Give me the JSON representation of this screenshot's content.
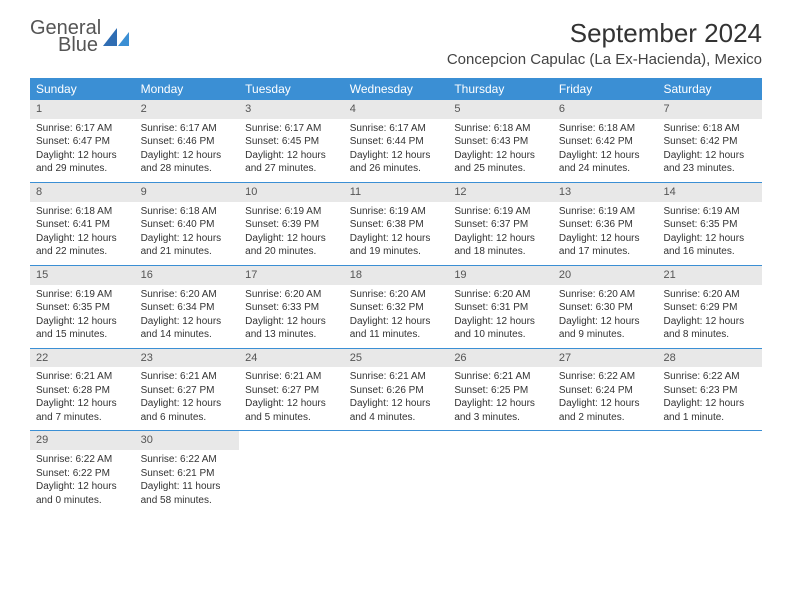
{
  "logo": {
    "word1": "General",
    "word2": "Blue"
  },
  "title": "September 2024",
  "location": "Concepcion Capulac (La Ex-Hacienda), Mexico",
  "colors": {
    "header_bg": "#3b8fd4",
    "header_text": "#ffffff",
    "daynum_bg": "#e8e8e8",
    "border": "#3b8fd4",
    "text": "#333333",
    "logo_gray": "#555555",
    "logo_blue": "#3b7fc4"
  },
  "weekdays": [
    "Sunday",
    "Monday",
    "Tuesday",
    "Wednesday",
    "Thursday",
    "Friday",
    "Saturday"
  ],
  "weeks": [
    [
      {
        "n": "1",
        "sr": "Sunrise: 6:17 AM",
        "ss": "Sunset: 6:47 PM",
        "dl1": "Daylight: 12 hours",
        "dl2": "and 29 minutes."
      },
      {
        "n": "2",
        "sr": "Sunrise: 6:17 AM",
        "ss": "Sunset: 6:46 PM",
        "dl1": "Daylight: 12 hours",
        "dl2": "and 28 minutes."
      },
      {
        "n": "3",
        "sr": "Sunrise: 6:17 AM",
        "ss": "Sunset: 6:45 PM",
        "dl1": "Daylight: 12 hours",
        "dl2": "and 27 minutes."
      },
      {
        "n": "4",
        "sr": "Sunrise: 6:17 AM",
        "ss": "Sunset: 6:44 PM",
        "dl1": "Daylight: 12 hours",
        "dl2": "and 26 minutes."
      },
      {
        "n": "5",
        "sr": "Sunrise: 6:18 AM",
        "ss": "Sunset: 6:43 PM",
        "dl1": "Daylight: 12 hours",
        "dl2": "and 25 minutes."
      },
      {
        "n": "6",
        "sr": "Sunrise: 6:18 AM",
        "ss": "Sunset: 6:42 PM",
        "dl1": "Daylight: 12 hours",
        "dl2": "and 24 minutes."
      },
      {
        "n": "7",
        "sr": "Sunrise: 6:18 AM",
        "ss": "Sunset: 6:42 PM",
        "dl1": "Daylight: 12 hours",
        "dl2": "and 23 minutes."
      }
    ],
    [
      {
        "n": "8",
        "sr": "Sunrise: 6:18 AM",
        "ss": "Sunset: 6:41 PM",
        "dl1": "Daylight: 12 hours",
        "dl2": "and 22 minutes."
      },
      {
        "n": "9",
        "sr": "Sunrise: 6:18 AM",
        "ss": "Sunset: 6:40 PM",
        "dl1": "Daylight: 12 hours",
        "dl2": "and 21 minutes."
      },
      {
        "n": "10",
        "sr": "Sunrise: 6:19 AM",
        "ss": "Sunset: 6:39 PM",
        "dl1": "Daylight: 12 hours",
        "dl2": "and 20 minutes."
      },
      {
        "n": "11",
        "sr": "Sunrise: 6:19 AM",
        "ss": "Sunset: 6:38 PM",
        "dl1": "Daylight: 12 hours",
        "dl2": "and 19 minutes."
      },
      {
        "n": "12",
        "sr": "Sunrise: 6:19 AM",
        "ss": "Sunset: 6:37 PM",
        "dl1": "Daylight: 12 hours",
        "dl2": "and 18 minutes."
      },
      {
        "n": "13",
        "sr": "Sunrise: 6:19 AM",
        "ss": "Sunset: 6:36 PM",
        "dl1": "Daylight: 12 hours",
        "dl2": "and 17 minutes."
      },
      {
        "n": "14",
        "sr": "Sunrise: 6:19 AM",
        "ss": "Sunset: 6:35 PM",
        "dl1": "Daylight: 12 hours",
        "dl2": "and 16 minutes."
      }
    ],
    [
      {
        "n": "15",
        "sr": "Sunrise: 6:19 AM",
        "ss": "Sunset: 6:35 PM",
        "dl1": "Daylight: 12 hours",
        "dl2": "and 15 minutes."
      },
      {
        "n": "16",
        "sr": "Sunrise: 6:20 AM",
        "ss": "Sunset: 6:34 PM",
        "dl1": "Daylight: 12 hours",
        "dl2": "and 14 minutes."
      },
      {
        "n": "17",
        "sr": "Sunrise: 6:20 AM",
        "ss": "Sunset: 6:33 PM",
        "dl1": "Daylight: 12 hours",
        "dl2": "and 13 minutes."
      },
      {
        "n": "18",
        "sr": "Sunrise: 6:20 AM",
        "ss": "Sunset: 6:32 PM",
        "dl1": "Daylight: 12 hours",
        "dl2": "and 11 minutes."
      },
      {
        "n": "19",
        "sr": "Sunrise: 6:20 AM",
        "ss": "Sunset: 6:31 PM",
        "dl1": "Daylight: 12 hours",
        "dl2": "and 10 minutes."
      },
      {
        "n": "20",
        "sr": "Sunrise: 6:20 AM",
        "ss": "Sunset: 6:30 PM",
        "dl1": "Daylight: 12 hours",
        "dl2": "and 9 minutes."
      },
      {
        "n": "21",
        "sr": "Sunrise: 6:20 AM",
        "ss": "Sunset: 6:29 PM",
        "dl1": "Daylight: 12 hours",
        "dl2": "and 8 minutes."
      }
    ],
    [
      {
        "n": "22",
        "sr": "Sunrise: 6:21 AM",
        "ss": "Sunset: 6:28 PM",
        "dl1": "Daylight: 12 hours",
        "dl2": "and 7 minutes."
      },
      {
        "n": "23",
        "sr": "Sunrise: 6:21 AM",
        "ss": "Sunset: 6:27 PM",
        "dl1": "Daylight: 12 hours",
        "dl2": "and 6 minutes."
      },
      {
        "n": "24",
        "sr": "Sunrise: 6:21 AM",
        "ss": "Sunset: 6:27 PM",
        "dl1": "Daylight: 12 hours",
        "dl2": "and 5 minutes."
      },
      {
        "n": "25",
        "sr": "Sunrise: 6:21 AM",
        "ss": "Sunset: 6:26 PM",
        "dl1": "Daylight: 12 hours",
        "dl2": "and 4 minutes."
      },
      {
        "n": "26",
        "sr": "Sunrise: 6:21 AM",
        "ss": "Sunset: 6:25 PM",
        "dl1": "Daylight: 12 hours",
        "dl2": "and 3 minutes."
      },
      {
        "n": "27",
        "sr": "Sunrise: 6:22 AM",
        "ss": "Sunset: 6:24 PM",
        "dl1": "Daylight: 12 hours",
        "dl2": "and 2 minutes."
      },
      {
        "n": "28",
        "sr": "Sunrise: 6:22 AM",
        "ss": "Sunset: 6:23 PM",
        "dl1": "Daylight: 12 hours",
        "dl2": "and 1 minute."
      }
    ],
    [
      {
        "n": "29",
        "sr": "Sunrise: 6:22 AM",
        "ss": "Sunset: 6:22 PM",
        "dl1": "Daylight: 12 hours",
        "dl2": "and 0 minutes."
      },
      {
        "n": "30",
        "sr": "Sunrise: 6:22 AM",
        "ss": "Sunset: 6:21 PM",
        "dl1": "Daylight: 11 hours",
        "dl2": "and 58 minutes."
      },
      {
        "empty": true
      },
      {
        "empty": true
      },
      {
        "empty": true
      },
      {
        "empty": true
      },
      {
        "empty": true
      }
    ]
  ]
}
